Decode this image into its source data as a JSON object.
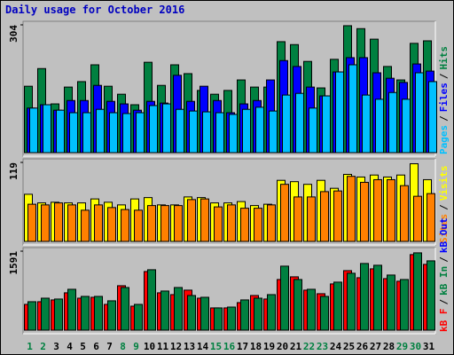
{
  "chart_data": [
    {
      "type": "bar",
      "title": "Daily usage for October 2016",
      "ylim": [
        0,
        304
      ],
      "yticks": [
        304
      ],
      "legend_separator": "/",
      "legend_reversed": true,
      "series": [
        {
          "name": "Hits",
          "color": "#008040",
          "values": [
            158,
            200,
            116,
            156,
            169,
            209,
            158,
            139,
            114,
            215,
            160,
            209,
            188,
            148,
            139,
            148,
            173,
            156,
            156,
            264,
            257,
            217,
            154,
            222,
            302,
            295,
            270,
            205,
            173,
            260,
            266
          ]
        },
        {
          "name": "Files",
          "color": "#0000ff",
          "values": [
            106,
            114,
            101,
            124,
            124,
            160,
            122,
            116,
            101,
            122,
            118,
            184,
            122,
            158,
            124,
            95,
            116,
            124,
            173,
            219,
            205,
            156,
            135,
            192,
            226,
            226,
            190,
            177,
            167,
            211,
            194
          ]
        },
        {
          "name": "Pages",
          "color": "#00c0ff",
          "values": [
            106,
            114,
            101,
            95,
            95,
            103,
            95,
            93,
            95,
            112,
            116,
            103,
            99,
            97,
            95,
            91,
            103,
            108,
            99,
            137,
            141,
            106,
            135,
            192,
            209,
            137,
            127,
            143,
            127,
            190,
            169
          ]
        }
      ]
    },
    {
      "type": "bar",
      "ylim": [
        0,
        119
      ],
      "yticks": [
        119
      ],
      "legend_separator": "/",
      "legend_reversed": true,
      "series": [
        {
          "name": "Visits",
          "color": "#ffff00",
          "values": [
            71,
            58,
            59,
            58,
            58,
            64,
            59,
            55,
            64,
            66,
            55,
            55,
            67,
            66,
            58,
            58,
            60,
            54,
            56,
            92,
            90,
            86,
            92,
            80,
            101,
            97,
            100,
            97,
            100,
            117,
            93
          ]
        },
        {
          "name": "Sites",
          "color": "#ff8000",
          "values": [
            56,
            55,
            58,
            55,
            47,
            55,
            51,
            48,
            47,
            54,
            54,
            54,
            63,
            64,
            52,
            55,
            50,
            50,
            55,
            86,
            67,
            67,
            75,
            76,
            98,
            89,
            93,
            93,
            84,
            68,
            72
          ]
        }
      ]
    },
    {
      "type": "bar",
      "ylim": [
        0,
        1591
      ],
      "yticks": [
        1591
      ],
      "legend_separator": "/",
      "legend_reversed": false,
      "extra_legend": {
        "name": "kB Out",
        "color": "#0000ff"
      },
      "categories": [
        "1",
        "2",
        "3",
        "4",
        "5",
        "6",
        "7",
        "8",
        "9",
        "10",
        "11",
        "12",
        "13",
        "14",
        "15",
        "16",
        "17",
        "18",
        "19",
        "20",
        "21",
        "22",
        "23",
        "24",
        "25",
        "26",
        "27",
        "28",
        "29",
        "30",
        "31"
      ],
      "category_colors": [
        "#008040",
        "#008040",
        "#000000",
        "#000000",
        "#000000",
        "#000000",
        "#000000",
        "#008040",
        "#008040",
        "#000000",
        "#000000",
        "#000000",
        "#000000",
        "#000000",
        "#008040",
        "#008040",
        "#000000",
        "#000000",
        "#000000",
        "#000000",
        "#000000",
        "#008040",
        "#008040",
        "#000000",
        "#000000",
        "#000000",
        "#000000",
        "#000000",
        "#008040",
        "#008040",
        "#000000"
      ],
      "series": [
        {
          "name": "kB F",
          "color": "#ff0000",
          "values": [
            519,
            573,
            609,
            752,
            644,
            662,
            519,
            895,
            483,
            1181,
            752,
            716,
            806,
            644,
            448,
            448,
            555,
            698,
            627,
            1020,
            1074,
            806,
            734,
            931,
            1199,
            1056,
            1235,
            1038,
            985,
            1522,
            1325
          ]
        },
        {
          "name": "kB In",
          "color": "#008040",
          "values": [
            573,
            644,
            627,
            823,
            680,
            680,
            591,
            859,
            519,
            1217,
            788,
            859,
            698,
            662,
            448,
            465,
            609,
            644,
            716,
            1289,
            1020,
            823,
            680,
            967,
            1146,
            1343,
            1307,
            1110,
            1020,
            1557,
            1396
          ]
        }
      ]
    }
  ]
}
